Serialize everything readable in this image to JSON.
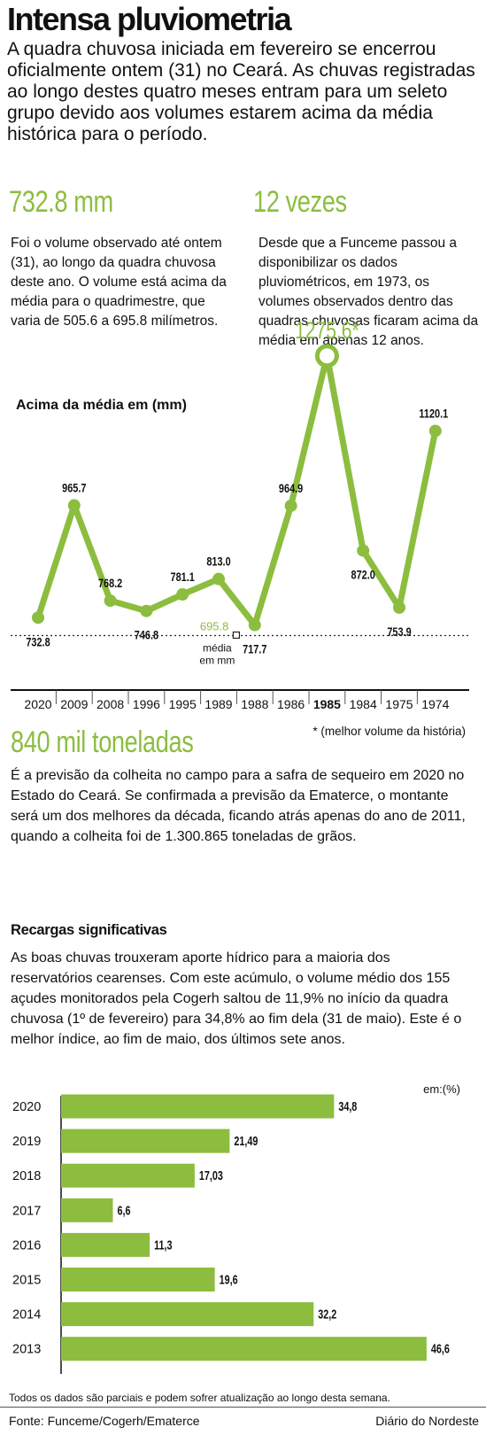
{
  "title": "Intensa pluviometria",
  "intro": "A quadra chuvosa iniciada em fevereiro se encerrou oficialmente ontem (31) no Ceará. As chuvas registradas ao longo destes quatro meses entram para um seleto grupo devido aos volumes estarem acima da média histórica para o período.",
  "stat1": {
    "value": "732.8 mm",
    "text": "Foi o volume observado até ontem (31), ao longo da quadra chuvosa deste ano. O volume está acima da média para o quadrimestre, que varia de 505.6 a 695.8 milímetros."
  },
  "stat2": {
    "value": "12 vezes",
    "text": "Desde que a Funceme passou a disponibilizar os dados pluviométricos, em 1973, os volumes observados dentro das quadras chuvosas ficaram acima da média em apenas 12 anos."
  },
  "colors": {
    "accent": "#8cbd3f",
    "text": "#111111"
  },
  "chart_data": [
    {
      "type": "line",
      "title": "Acima da média em (mm)",
      "categories": [
        "2020",
        "2009",
        "2008",
        "1996",
        "1995",
        "1989",
        "1988",
        "1986",
        "1985",
        "1984",
        "1975",
        "1974"
      ],
      "values": [
        732.8,
        965.7,
        768.2,
        746.8,
        781.1,
        813.0,
        717.7,
        964.9,
        1275.6,
        872.0,
        753.9,
        1120.1
      ],
      "value_labels": [
        "732.8",
        "965.7",
        "768.2",
        "746.8",
        "781.1",
        "813.0",
        "717.7",
        "964.9",
        "1275.6*",
        "872.0",
        "753.9",
        "1120.1"
      ],
      "highlight_category": "1985",
      "reference_line": {
        "value": 695.8,
        "label": "695.8",
        "caption": [
          "média",
          "em mm"
        ]
      },
      "footnote": "* (melhor volume da história)"
    },
    {
      "type": "bar",
      "orientation": "horizontal",
      "unit_label": "em:(%)",
      "categories": [
        "2020",
        "2019",
        "2018",
        "2017",
        "2016",
        "2015",
        "2014",
        "2013"
      ],
      "values": [
        34.8,
        21.49,
        17.03,
        6.6,
        11.3,
        19.6,
        32.2,
        46.6
      ],
      "value_labels": [
        "34,8",
        "21,49",
        "17,03",
        "6,6",
        "11,3",
        "19,6",
        "32,2",
        "46,6"
      ]
    }
  ],
  "harvest": {
    "value": "840 mil toneladas",
    "text": "É a previsão da colheita no campo para a safra de sequeiro em 2020 no Estado do Ceará. Se confirmada a previsão da Ematerce, o montante será um dos melhores da década, ficando atrás apenas do ano de 2011, quando a colheita foi de 1.300.865 toneladas de grãos."
  },
  "recharge": {
    "heading": "Recargas significativas",
    "text": "As boas chuvas trouxeram aporte hídrico para a maioria dos reservatórios cearenses. Com este acúmulo, o volume médio dos 155 açudes monitorados pela Cogerh saltou de 11,9% no início da quadra chuvosa (1º de fevereiro) para 34,8% ao fim dela (31 de maio). Este é o melhor índice, ao fim de maio, dos últimos sete anos."
  },
  "footer": {
    "note": "Todos os dados são parciais e podem sofrer atualização ao longo desta semana.",
    "source": "Fonte:  Funceme/Cogerh/Ematerce",
    "brand": "Diário do Nordeste"
  }
}
